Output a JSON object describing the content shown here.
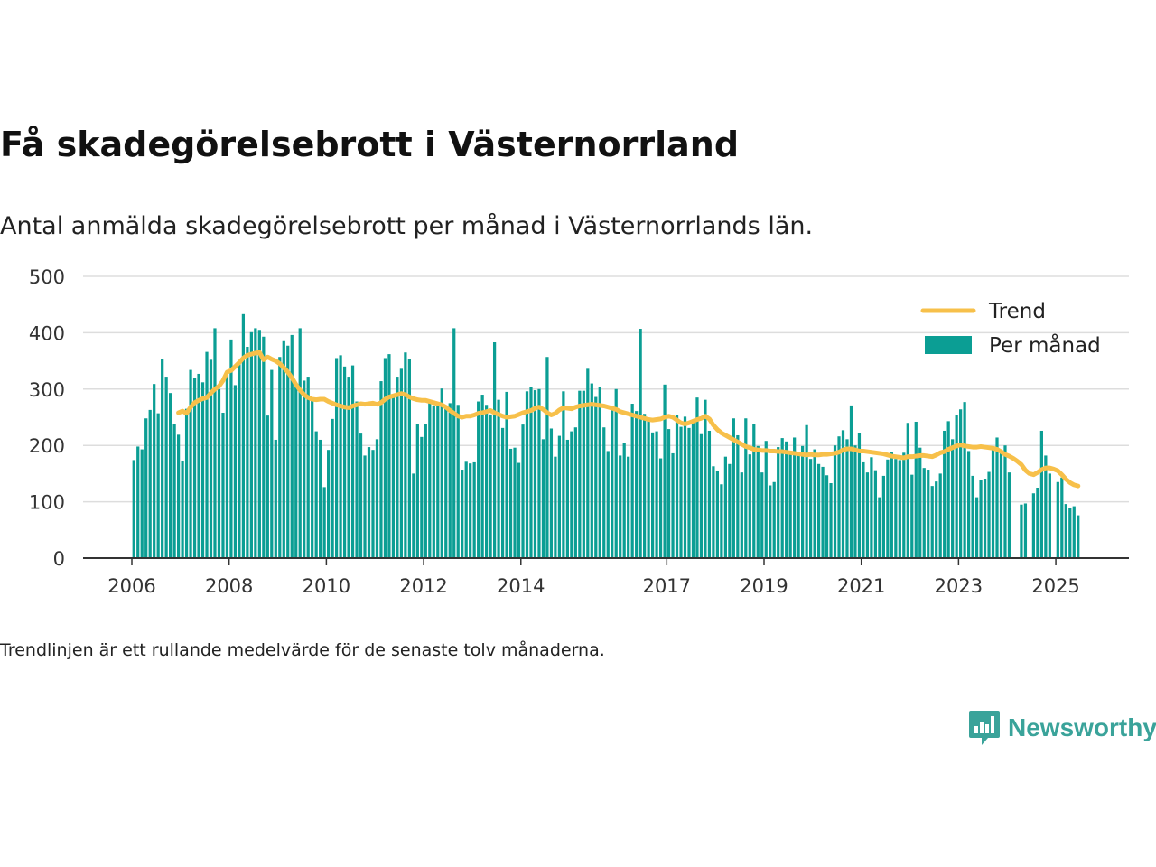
{
  "title": "Få skadegörelsebrott i Västernorrland",
  "subtitle": "Antal anmälda skadegörelsebrott per månad i Västernorrlands län.",
  "footnote": "Trendlinjen är ett rullande medelvärde för de senaste tolv månaderna.",
  "brand": {
    "name": "Newsworthy",
    "icon": "newsworthy-logo-icon"
  },
  "colors": {
    "bar": "#0b9e94",
    "trend": "#f7c04a",
    "grid": "#dddddd",
    "axis": "#333333"
  },
  "chart_data": {
    "type": "bar",
    "title": "Få skadegörelsebrott i Västernorrland",
    "ylim": [
      0,
      500
    ],
    "grid": true,
    "legend_position": "top-right",
    "y_ticks": [
      0,
      100,
      200,
      300,
      400,
      500
    ],
    "x_ticks": [
      "2006",
      "2008",
      "2010",
      "2012",
      "2014",
      "2017",
      "2019",
      "2021",
      "2023",
      "2025"
    ],
    "start_month": "2006-01",
    "series": [
      {
        "name": "Per månad",
        "type": "bar",
        "values": [
          174,
          198,
          193,
          248,
          263,
          309,
          257,
          353,
          322,
          293,
          238,
          219,
          173,
          265,
          334,
          320,
          327,
          312,
          366,
          352,
          408,
          300,
          258,
          325,
          388,
          307,
          350,
          433,
          375,
          401,
          408,
          405,
          393,
          253,
          334,
          210,
          357,
          385,
          377,
          396,
          305,
          408,
          315,
          322,
          279,
          225,
          210,
          126,
          192,
          247,
          355,
          360,
          340,
          322,
          342,
          278,
          221,
          182,
          197,
          192,
          211,
          314,
          355,
          362,
          286,
          322,
          336,
          365,
          353,
          150,
          238,
          215,
          238,
          277,
          271,
          272,
          301,
          271,
          275,
          408,
          272,
          157,
          171,
          168,
          170,
          278,
          290,
          272,
          255,
          383,
          281,
          231,
          295,
          194,
          196,
          169,
          237,
          296,
          304,
          298,
          300,
          211,
          357,
          230,
          180,
          217,
          296,
          210,
          225,
          232,
          297,
          297,
          336,
          310,
          286,
          303,
          232,
          190,
          262,
          300,
          182,
          204,
          180,
          274,
          261,
          407,
          256,
          247,
          223,
          225,
          177,
          308,
          229,
          186,
          254,
          233,
          251,
          231,
          244,
          285,
          220,
          281,
          226,
          163,
          155,
          131,
          180,
          167,
          248,
          218,
          152,
          248,
          184,
          238,
          199,
          152,
          208,
          129,
          135,
          197,
          213,
          207,
          187,
          214,
          185,
          199,
          236,
          176,
          193,
          167,
          162,
          147,
          133,
          200,
          216,
          227,
          211,
          271,
          200,
          222,
          170,
          152,
          179,
          156,
          108,
          146,
          175,
          188,
          176,
          174,
          187,
          240,
          148,
          242,
          196,
          160,
          157,
          128,
          136,
          150,
          226,
          243,
          211,
          254,
          264,
          277,
          190,
          146,
          108,
          138,
          141,
          153,
          197,
          214,
          186,
          200,
          152,
          0,
          0,
          95,
          97,
          0,
          115,
          125,
          226,
          182,
          150,
          0,
          135,
          143,
          96,
          89,
          92,
          76
        ]
      },
      {
        "name": "Trend",
        "type": "line",
        "values": [
          null,
          null,
          null,
          null,
          null,
          null,
          null,
          null,
          null,
          null,
          null,
          258,
          261,
          257,
          268,
          276,
          280,
          283,
          285,
          293,
          300,
          305,
          315,
          330,
          333,
          340,
          347,
          355,
          360,
          362,
          364,
          365,
          352,
          357,
          353,
          350,
          345,
          338,
          330,
          320,
          308,
          298,
          290,
          285,
          282,
          281,
          282,
          282,
          278,
          275,
          272,
          270,
          268,
          267,
          270,
          272,
          274,
          273,
          274,
          275,
          273,
          276,
          282,
          286,
          288,
          290,
          292,
          290,
          286,
          283,
          281,
          280,
          280,
          278,
          276,
          274,
          272,
          268,
          262,
          257,
          252,
          250,
          252,
          252,
          254,
          257,
          258,
          260,
          262,
          258,
          255,
          252,
          250,
          251,
          252,
          255,
          258,
          260,
          262,
          266,
          268,
          264,
          258,
          254,
          257,
          263,
          267,
          266,
          265,
          268,
          270,
          271,
          272,
          273,
          272,
          271,
          270,
          268,
          266,
          264,
          260,
          258,
          256,
          254,
          252,
          250,
          248,
          246,
          245,
          246,
          247,
          250,
          252,
          250,
          245,
          240,
          238,
          240,
          243,
          246,
          248,
          252,
          247,
          236,
          228,
          222,
          218,
          214,
          210,
          206,
          202,
          198,
          196,
          193,
          192,
          191,
          191,
          190,
          190,
          189,
          189,
          188,
          187,
          186,
          185,
          184,
          183,
          184,
          183,
          183,
          184,
          184,
          185,
          186,
          188,
          192,
          194,
          194,
          192,
          190,
          190,
          189,
          188,
          187,
          186,
          185,
          183,
          181,
          180,
          179,
          178,
          180,
          180,
          181,
          182,
          182,
          181,
          180,
          183,
          187,
          189,
          193,
          196,
          199,
          201,
          199,
          198,
          197,
          197,
          198,
          197,
          196,
          195,
          193,
          189,
          184,
          181,
          177,
          172,
          166,
          156,
          150,
          148,
          152,
          157,
          160,
          160,
          158,
          155,
          148,
          140,
          134,
          130,
          128
        ]
      }
    ]
  }
}
